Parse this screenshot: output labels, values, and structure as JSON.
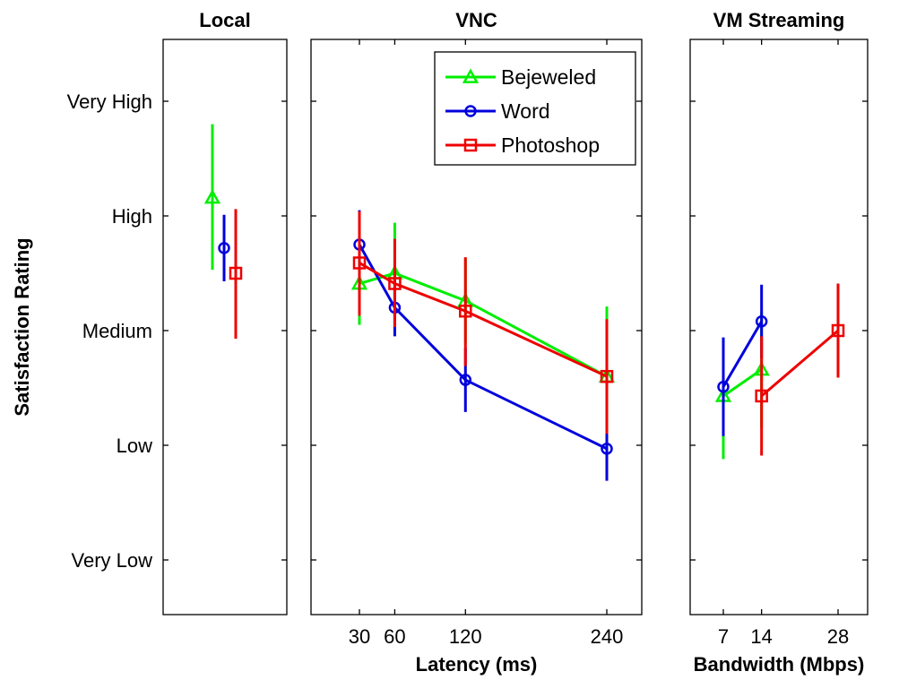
{
  "chart_data": {
    "type": "line",
    "ylabel": "Satisfaction Rating",
    "y_categories": [
      "Very Low",
      "Low",
      "Medium",
      "High",
      "Very High"
    ],
    "ylim": [
      0.6,
      5.6
    ],
    "legend": {
      "placement": "top-right of VNC panel",
      "entries": [
        {
          "name": "Bejeweled",
          "color": "#00ee00",
          "marker": "triangle"
        },
        {
          "name": "Word",
          "color": "#0000dd",
          "marker": "circle"
        },
        {
          "name": "Photoshop",
          "color": "#ee0000",
          "marker": "square"
        }
      ]
    },
    "panels": [
      {
        "title": "Local",
        "xlabel": "",
        "x_ticks": [],
        "series": [
          {
            "name": "Bejeweled",
            "points": [
              {
                "x": 1.0,
                "y": 4.16,
                "err_low": 3.53,
                "err_high": 4.8
              }
            ]
          },
          {
            "name": "Word",
            "points": [
              {
                "x": 1.5,
                "y": 3.72,
                "err_low": 3.43,
                "err_high": 4.01
              }
            ]
          },
          {
            "name": "Photoshop",
            "points": [
              {
                "x": 2.0,
                "y": 3.5,
                "err_low": 2.93,
                "err_high": 4.06
              }
            ]
          }
        ]
      },
      {
        "title": "VNC",
        "xlabel": "Latency (ms)",
        "x_ticks": [
          30,
          60,
          120,
          240
        ],
        "series": [
          {
            "name": "Bejeweled",
            "points": [
              {
                "x": 30,
                "y": 3.41,
                "err_low": 3.05,
                "err_high": 3.77
              },
              {
                "x": 60,
                "y": 3.5,
                "err_low": 3.06,
                "err_high": 3.94
              },
              {
                "x": 120,
                "y": 3.26,
                "err_low": 2.89,
                "err_high": 3.63
              },
              {
                "x": 240,
                "y": 2.6,
                "err_low": 1.98,
                "err_high": 3.21
              }
            ]
          },
          {
            "name": "Word",
            "points": [
              {
                "x": 30,
                "y": 3.75,
                "err_low": 3.45,
                "err_high": 4.05
              },
              {
                "x": 60,
                "y": 3.2,
                "err_low": 2.95,
                "err_high": 3.45
              },
              {
                "x": 120,
                "y": 2.57,
                "err_low": 2.29,
                "err_high": 2.85
              },
              {
                "x": 240,
                "y": 1.97,
                "err_low": 1.69,
                "err_high": 2.26
              }
            ]
          },
          {
            "name": "Photoshop",
            "points": [
              {
                "x": 30,
                "y": 3.59,
                "err_low": 3.13,
                "err_high": 4.04
              },
              {
                "x": 60,
                "y": 3.41,
                "err_low": 3.03,
                "err_high": 3.8
              },
              {
                "x": 120,
                "y": 3.17,
                "err_low": 2.69,
                "err_high": 3.64
              },
              {
                "x": 240,
                "y": 2.6,
                "err_low": 2.1,
                "err_high": 3.1
              }
            ]
          }
        ]
      },
      {
        "title": "VM Streaming",
        "xlabel": "Bandwidth (Mbps)",
        "x_ticks": [
          7,
          14,
          28
        ],
        "series": [
          {
            "name": "Bejeweled",
            "points": [
              {
                "x": 7,
                "y": 2.43,
                "err_low": 1.88,
                "err_high": 2.93
              },
              {
                "x": 14,
                "y": 2.66,
                "err_low": 2.15,
                "err_high": 3.16
              }
            ]
          },
          {
            "name": "Word",
            "points": [
              {
                "x": 7,
                "y": 2.51,
                "err_low": 2.08,
                "err_high": 2.94
              },
              {
                "x": 14,
                "y": 3.08,
                "err_low": 2.76,
                "err_high": 3.4
              }
            ]
          },
          {
            "name": "Photoshop",
            "points": [
              {
                "x": 14,
                "y": 2.43,
                "err_low": 1.91,
                "err_high": 2.95
              },
              {
                "x": 28,
                "y": 3.0,
                "err_low": 2.59,
                "err_high": 3.41
              }
            ]
          }
        ]
      }
    ]
  }
}
